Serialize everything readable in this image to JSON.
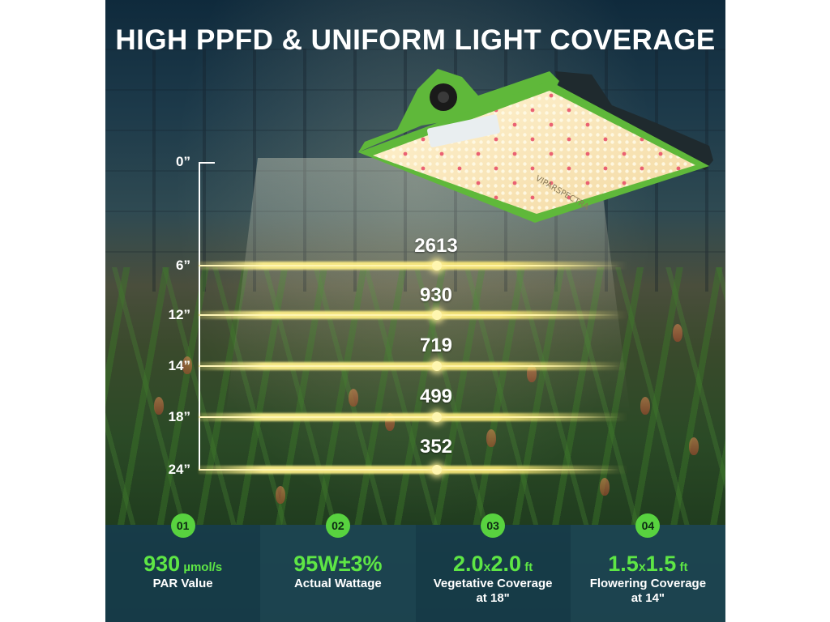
{
  "headline": "HIGH PPFD & UNIFORM LIGHT COVERAGE",
  "brand_print": "VIPARSPECTRA",
  "scale": {
    "zero_label": "0”",
    "levels": [
      {
        "height": "6”",
        "value": "2613"
      },
      {
        "height": "12”",
        "value": "930"
      },
      {
        "height": "14”",
        "value": "719"
      },
      {
        "height": "18”",
        "value": "499"
      },
      {
        "height": "24”",
        "value": "352"
      }
    ]
  },
  "features": [
    {
      "num": "01",
      "value_main": "930",
      "value_unit": " µmol/s",
      "label_line1": "PAR Value",
      "label_line2": ""
    },
    {
      "num": "02",
      "value_main": "95W±3%",
      "value_unit": "",
      "label_line1": "Actual Wattage",
      "label_line2": ""
    },
    {
      "num": "03",
      "value_a": "2.0",
      "value_x": "x",
      "value_b": "2.0",
      "value_unit": " ft",
      "label_line1": "Vegetative Coverage",
      "label_line2": "at 18\""
    },
    {
      "num": "04",
      "value_a": "1.5",
      "value_x": "x",
      "value_b": "1.5",
      "value_unit": " ft",
      "label_line1": "Flowering Coverage",
      "label_line2": "at 14\""
    }
  ],
  "colors": {
    "accent_green": "#5ee645",
    "badge_green": "#58d23f",
    "lamp_green": "#5fb83a",
    "light_yellow": "#fff3a0"
  }
}
